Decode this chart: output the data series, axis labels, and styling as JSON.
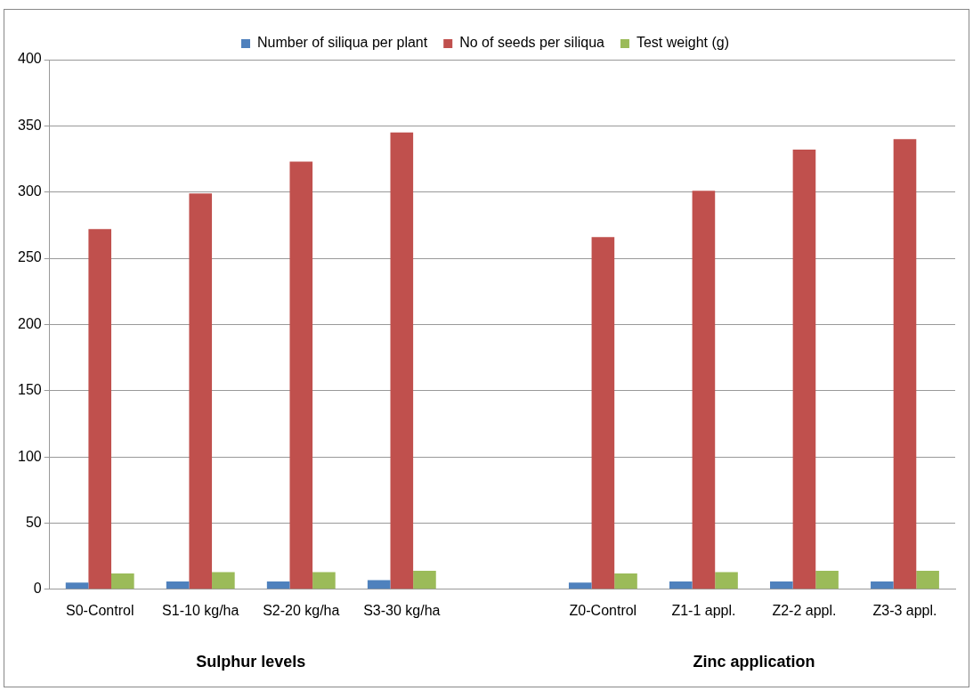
{
  "chart_data": {
    "type": "bar",
    "categories": [
      "S0-Control",
      "S1-10 kg/ha",
      "S2-20 kg/ha",
      "S3-30 kg/ha",
      null,
      "Z0-Control",
      "Z1-1 appl.",
      "Z2-2 appl.",
      "Z3-3 appl."
    ],
    "series": [
      {
        "name": "Number of siliqua per plant",
        "color": "#4f81bd",
        "values": [
          5,
          6,
          6,
          7,
          null,
          5,
          6,
          6,
          6
        ]
      },
      {
        "name": "No of seeds per siliqua",
        "color": "#c0504d",
        "values": [
          272,
          299,
          323,
          345,
          null,
          266,
          301,
          332,
          340
        ]
      },
      {
        "name": "Test weight (g)",
        "color": "#9bbb59",
        "values": [
          12,
          13,
          13,
          14,
          null,
          12,
          13,
          14,
          14
        ]
      }
    ],
    "ylim": [
      0,
      400
    ],
    "yticks": [
      0,
      50,
      100,
      150,
      200,
      250,
      300,
      350,
      400
    ],
    "grid": "y",
    "legend": "top",
    "annotations": [
      "Sulphur levels",
      "Zinc application"
    ]
  }
}
